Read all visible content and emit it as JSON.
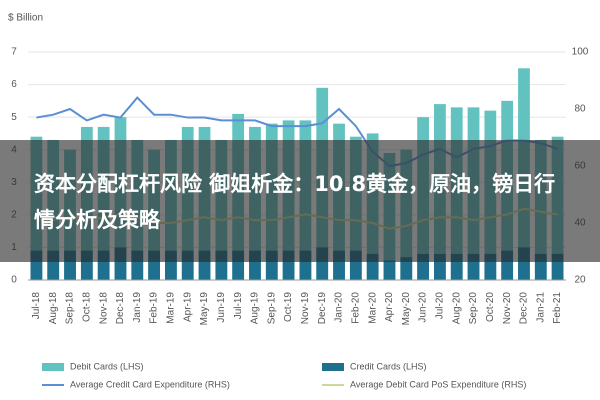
{
  "chart_data": {
    "type": "bar",
    "overlay_text": "资本分配杠杆风险 御姐析金：10.8黄金，原油，镑日行情分析及策略",
    "y_axis_label": "$ Billion",
    "categories": [
      "Jul-18",
      "Aug-18",
      "Sep-18",
      "Oct-18",
      "Nov-18",
      "Dec-18",
      "Jan-19",
      "Feb-19",
      "Mar-19",
      "Apr-19",
      "May-19",
      "Jun-19",
      "Jul-19",
      "Aug-19",
      "Sep-19",
      "Oct-19",
      "Nov-19",
      "Dec-19",
      "Jan-20",
      "Feb-20",
      "Mar-20",
      "Apr-20",
      "May-20",
      "Jun-20",
      "Jul-20",
      "Aug-20",
      "Sep-20",
      "Oct-20",
      "Nov-20",
      "Dec-20",
      "Jan-21",
      "Feb-21"
    ],
    "series": [
      {
        "name": "Debit Cards (LHS)",
        "type": "bar",
        "color": "#62c2c0",
        "values": [
          4.4,
          4.3,
          4.0,
          4.7,
          4.7,
          5.0,
          4.3,
          4.0,
          4.3,
          4.7,
          4.7,
          4.3,
          5.1,
          4.7,
          4.8,
          4.9,
          4.9,
          5.9,
          4.8,
          4.4,
          4.5,
          3.9,
          4.0,
          5.0,
          5.4,
          5.3,
          5.3,
          5.2,
          5.5,
          6.5,
          4.3,
          4.4
        ]
      },
      {
        "name": "Credit Cards (LHS)",
        "type": "bar",
        "color": "#1f6f8e",
        "values": [
          0.9,
          0.9,
          0.9,
          0.9,
          0.9,
          1.0,
          0.9,
          0.9,
          0.9,
          0.9,
          0.9,
          0.9,
          0.9,
          0.9,
          0.9,
          0.9,
          0.9,
          1.0,
          0.9,
          0.9,
          0.8,
          0.6,
          0.7,
          0.8,
          0.8,
          0.8,
          0.8,
          0.8,
          0.9,
          1.0,
          0.8,
          0.8
        ]
      },
      {
        "name": "Average Credit Card Expenditure (RHS)",
        "type": "line",
        "axis": "y2",
        "color": "#5b8fd4",
        "values": [
          77,
          78,
          80,
          76,
          78,
          77,
          84,
          78,
          78,
          77,
          77,
          76,
          76,
          76,
          74,
          74,
          74,
          75,
          80,
          74,
          65,
          60,
          61,
          64,
          66,
          63,
          66,
          67,
          69,
          69,
          68,
          66
        ]
      },
      {
        "name": "Average Debit Card PoS Expenditure (RHS)",
        "type": "line",
        "axis": "y2",
        "color": "#c9d99a",
        "values": [
          41,
          41,
          42,
          41,
          42,
          43,
          42,
          40,
          40,
          41,
          42,
          41,
          42,
          41,
          41,
          42,
          43,
          42,
          41,
          41,
          40,
          38,
          39,
          41,
          42,
          42,
          41,
          42,
          43,
          45,
          44,
          43
        ]
      }
    ],
    "ylim": [
      0,
      7
    ],
    "yticks": [
      0,
      1,
      2,
      3,
      4,
      5,
      6,
      7
    ],
    "y2lim": [
      20,
      100
    ],
    "y2ticks": [
      20,
      40,
      60,
      80,
      100
    ],
    "grid": true
  }
}
